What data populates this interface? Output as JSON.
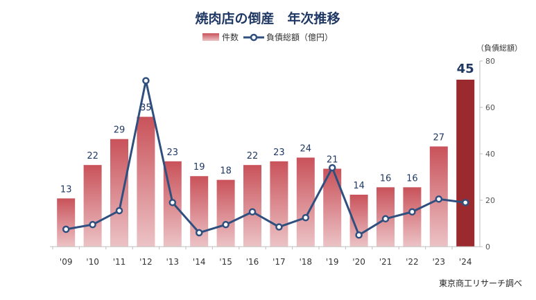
{
  "chart_data": {
    "type": "bar",
    "title": "焼肉店の倒産　年次推移",
    "categories": [
      "'09",
      "'10",
      "'11",
      "'12",
      "'13",
      "'14",
      "'15",
      "'16",
      "'17",
      "'18",
      "'19",
      "'20",
      "'21",
      "'22",
      "'23",
      "'24"
    ],
    "series": [
      {
        "name": "件数",
        "type": "bar",
        "values": [
          13,
          22,
          29,
          35,
          23,
          19,
          18,
          22,
          23,
          24,
          21,
          14,
          16,
          16,
          27,
          45
        ]
      },
      {
        "name": "負債総額（億円）",
        "type": "line",
        "axis": "right",
        "values": [
          7.5,
          9.5,
          15.5,
          71.5,
          19,
          6,
          9.5,
          15,
          8.5,
          12.5,
          34,
          5,
          12,
          15,
          20.5,
          19
        ]
      }
    ],
    "highlight_index": 15,
    "y_left_range": [
      0,
      50.5
    ],
    "y_right": {
      "label": "（負債総額）",
      "ticks": [
        "0",
        "20",
        "40",
        "60",
        "80"
      ],
      "range": [
        0,
        80
      ]
    },
    "colors": {
      "bar_top": "#c9525a",
      "bar_bottom": "#ecc3c6",
      "bar_highlight": "#9b2a2e",
      "line": "#2f4f7f",
      "marker_fill": "#ffffff",
      "title": "#1f3864",
      "axis": "#bdbdbd"
    },
    "source": "東京商工リサーチ調べ"
  }
}
